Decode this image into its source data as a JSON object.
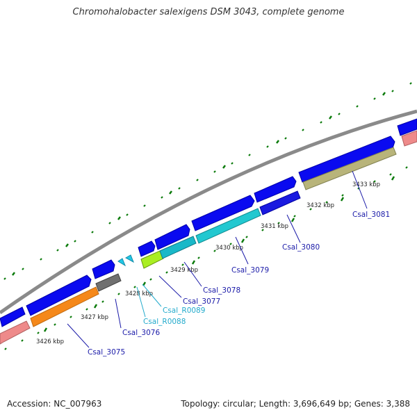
{
  "title": "Chromohalobacter salexigens DSM 3043, complete genome",
  "footer": {
    "accession": "Accession: NC_007963",
    "stats": "Topology: circular; Length: 3,696,649 bp; Genes: 3,388"
  },
  "colors": {
    "backbone": "#8a8a8a",
    "gene_blue": "#0a0af0",
    "gene_dark_blue": "#0000a8",
    "tick": "#0a7a0a",
    "rna_cyan": "#22c8e6",
    "label_blue": "#1a1aa8",
    "label_cyan": "#22aacc"
  },
  "scale_labels": [
    "3426 kbp",
    "3427 kbp",
    "3428 kbp",
    "3429 kbp",
    "3430 kbp",
    "3431 kbp",
    "3432 kbp",
    "3433 kbp"
  ],
  "genes": [
    {
      "label": "Csal_3075",
      "color": "#f5881a"
    },
    {
      "label": "Csal_3076",
      "color": "#707070"
    },
    {
      "label": "Csal_3077",
      "color": "#1ab8c8"
    },
    {
      "label": "Csal_3078",
      "color": "#1ab8c8"
    },
    {
      "label": "Csal_R0088",
      "color": "#22c8e6"
    },
    {
      "label": "Csal_R0089",
      "color": "#22c8e6"
    },
    {
      "label": "Csal_3079",
      "color": "#22c8d0"
    },
    {
      "label": "Csal_3080",
      "color": "#1a1ae0"
    },
    {
      "label": "Csal_3081",
      "color": "#b8b47a"
    }
  ]
}
